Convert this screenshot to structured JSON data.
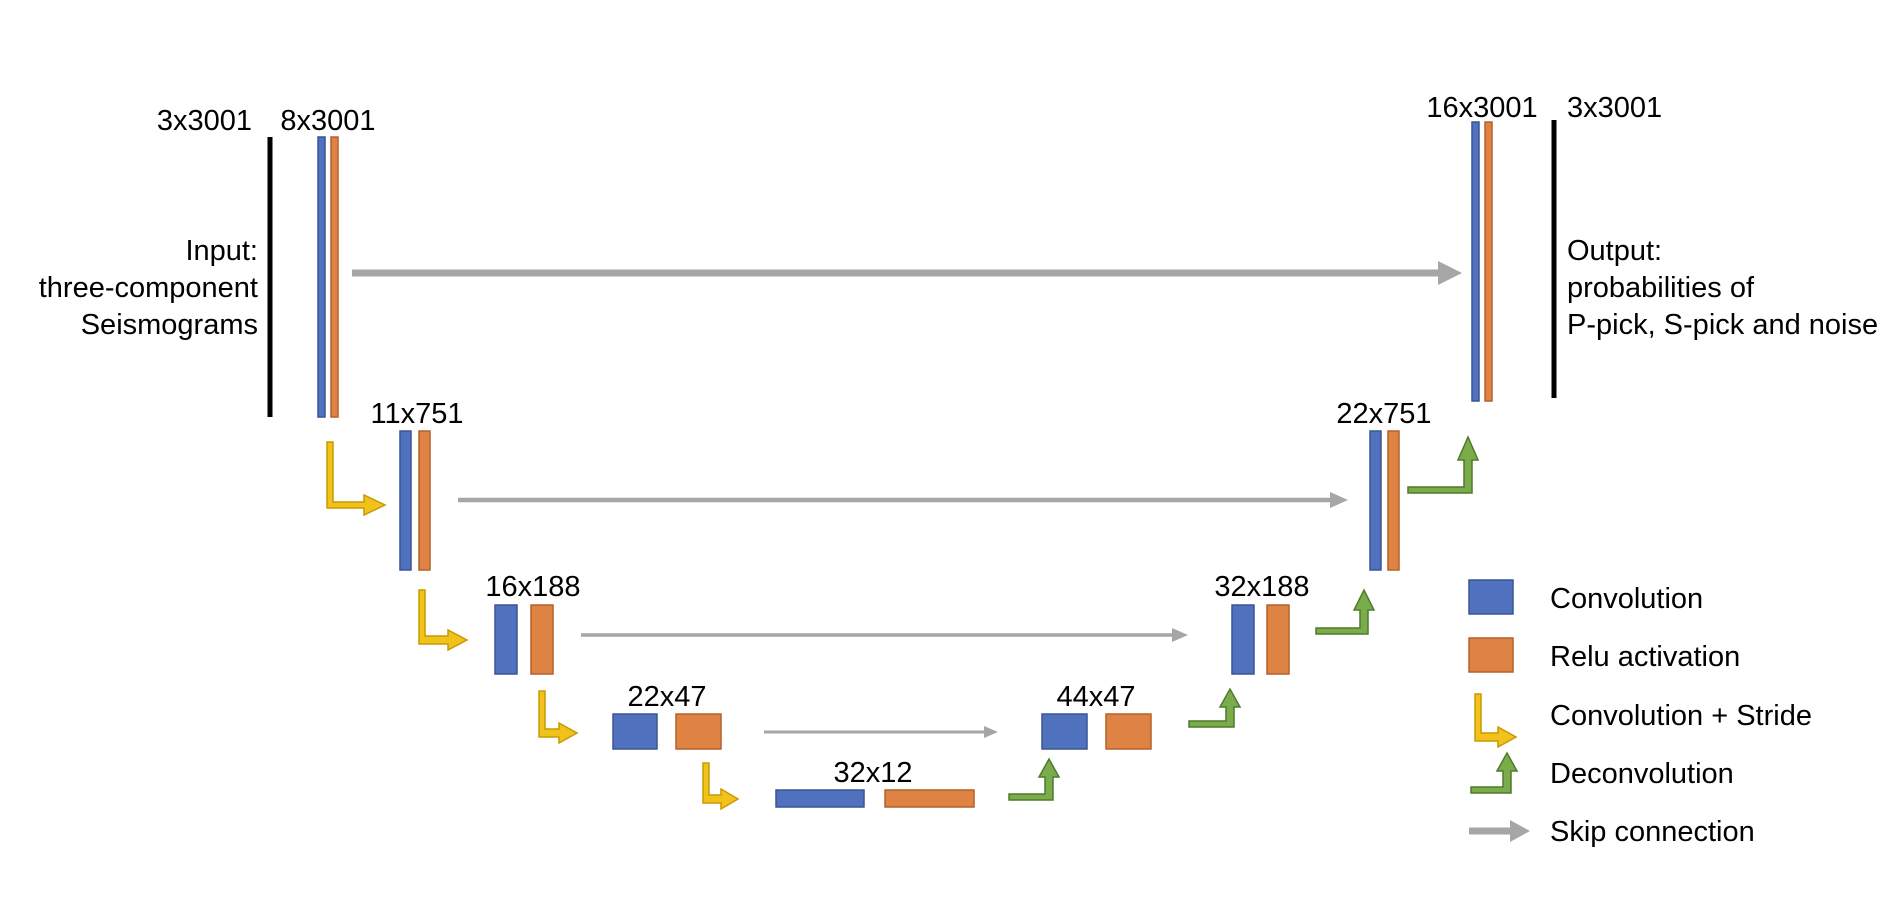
{
  "input": {
    "shape_label": "3x3001",
    "description": [
      "Input:",
      "three-component",
      "Seismograms"
    ]
  },
  "output": {
    "shape_label": "3x3001",
    "description": [
      "Output:",
      "probabilities of",
      "P-pick, S-pick and noise"
    ]
  },
  "encoder": [
    {
      "label": "8x3001"
    },
    {
      "label": "11x751"
    },
    {
      "label": "16x188"
    },
    {
      "label": "22x47"
    }
  ],
  "bottleneck": {
    "label": "32x12"
  },
  "decoder": [
    {
      "label": "44x47"
    },
    {
      "label": "32x188"
    },
    {
      "label": "22x751"
    },
    {
      "label": "16x3001"
    }
  ],
  "legend": [
    {
      "label": "Convolution",
      "symbol": "conv-box",
      "color": "#4f71be"
    },
    {
      "label": "Relu activation",
      "symbol": "relu-box",
      "color": "#de8344"
    },
    {
      "label": "Convolution + Stride",
      "symbol": "stride-arrow",
      "color": "#f2c21c"
    },
    {
      "label": "Deconvolution",
      "symbol": "deconv-arrow",
      "color": "#7bac4b"
    },
    {
      "label": "Skip connection",
      "symbol": "skip-arrow",
      "color": "#a6a6a6"
    }
  ]
}
